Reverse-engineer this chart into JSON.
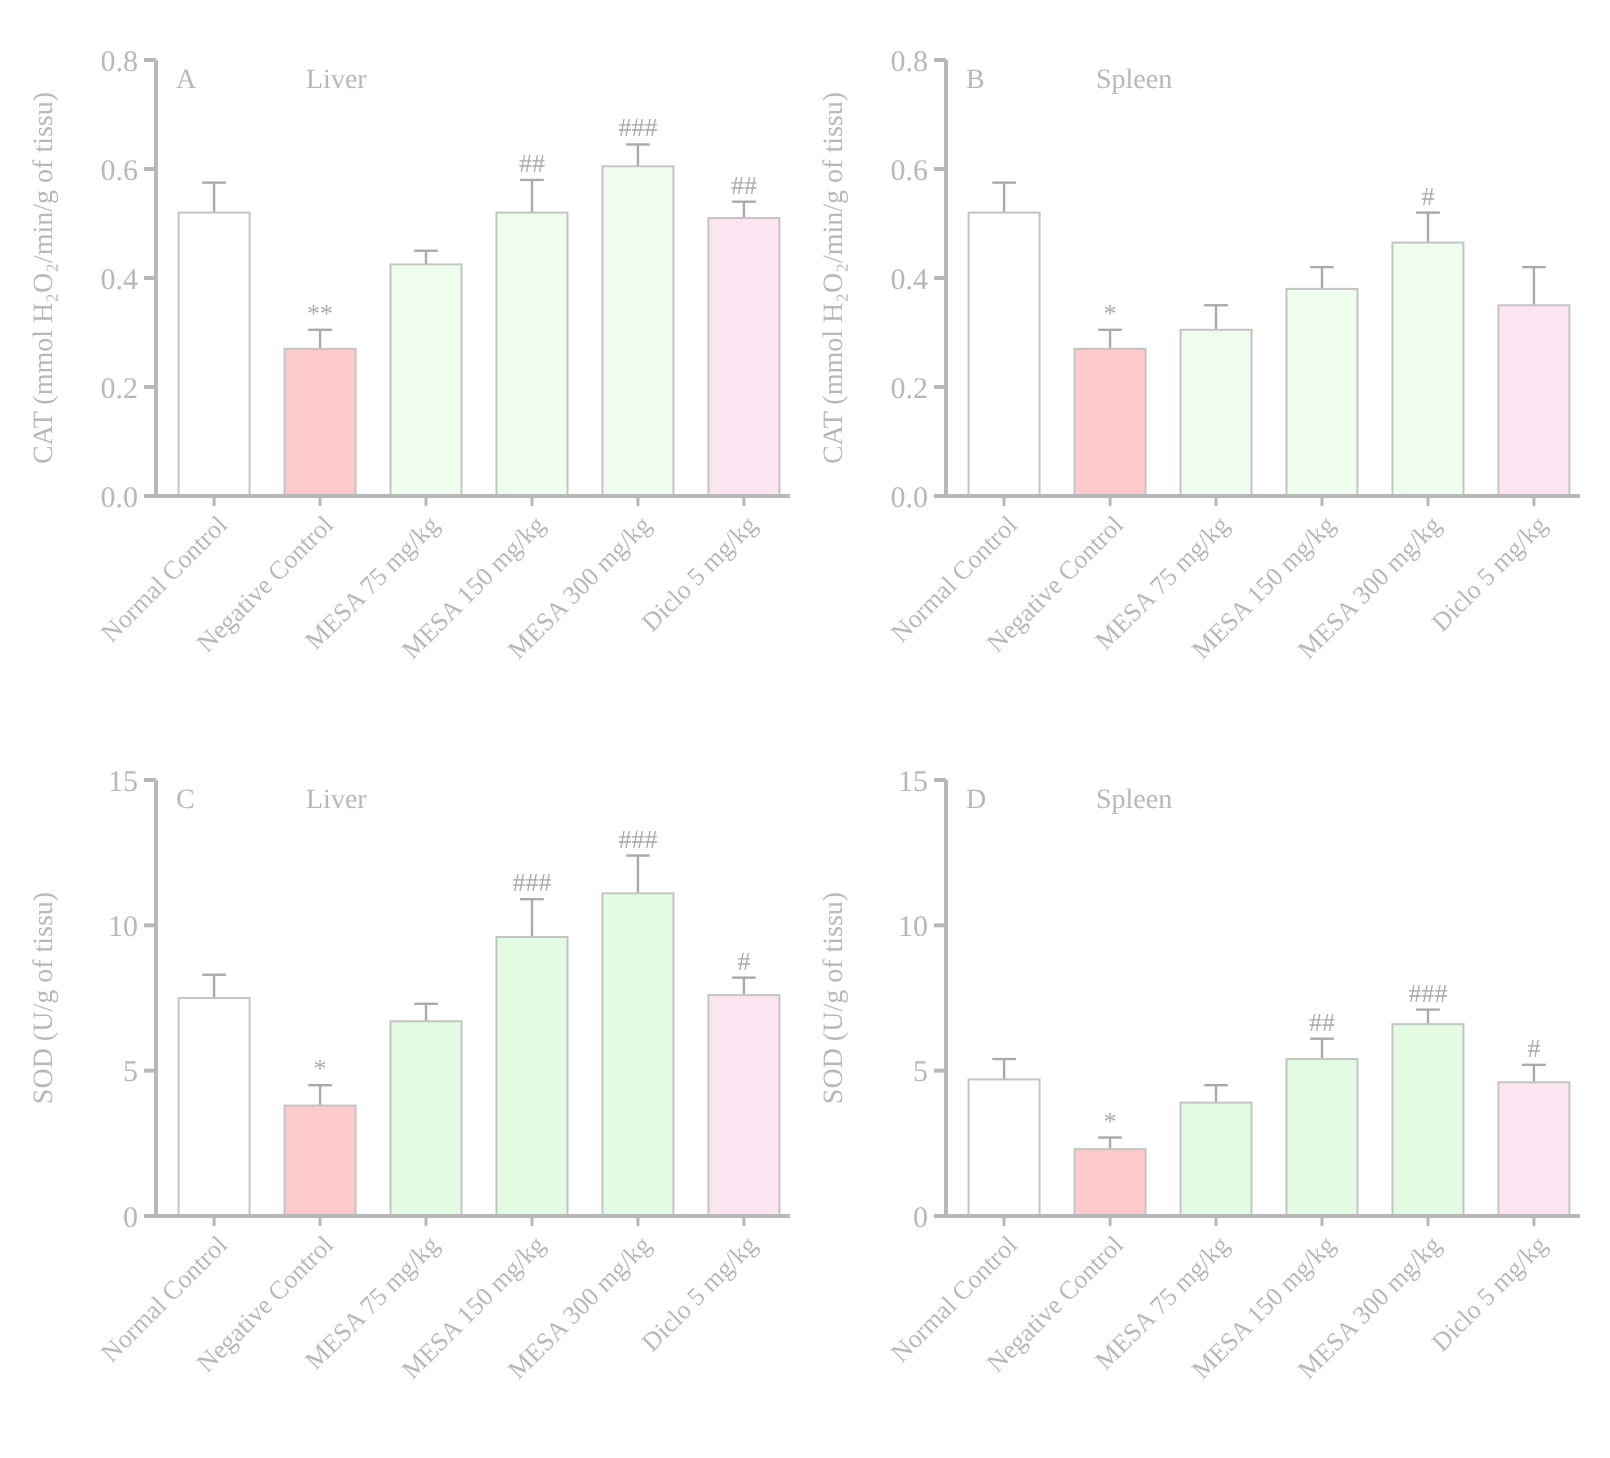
{
  "chart_data": [
    {
      "type": "bar",
      "title": "Liver",
      "ylabel": "CAT (mmol H₂O₂/min/g of tissu)",
      "categories": [
        "Normal Control",
        "Negative Control",
        "MESA 75 mg/kg",
        "MESA 150 mg/kg",
        "MESA 300 mg/kg",
        "Diclo 5 mg/kg"
      ],
      "values": [
        0.52,
        0.27,
        0.425,
        0.52,
        0.605,
        0.51
      ],
      "errors": [
        0.055,
        0.035,
        0.025,
        0.06,
        0.04,
        0.03
      ],
      "colors": [
        "#ffffff",
        "#fccaca",
        "#effdef",
        "#effdef",
        "#effdef",
        "#fce4f0"
      ],
      "ylim": [
        0,
        0.8
      ],
      "yticks": [
        {
          "value": 0,
          "label": "0.0"
        },
        0.2,
        0.4,
        0.6,
        0.8
      ],
      "grid": false,
      "annotations": [
        "A",
        {
          "text": "**",
          "x": "Negative Control",
          "y": 0.305
        },
        {
          "text": "##",
          "x": "MESA 150 mg/kg",
          "y": 0.58
        },
        {
          "text": "###",
          "x": "MESA 300 mg/kg",
          "y": 0.645
        },
        {
          "text": "##",
          "x": "Diclo 5 mg/kg",
          "y": 0.54
        }
      ]
    },
    {
      "type": "bar",
      "title": "Spleen",
      "ylabel": "CAT (mmol H₂O₂/min/g of tissu)",
      "categories": [
        "Normal Control",
        "Negative Control",
        "MESA 75 mg/kg",
        "MESA 150 mg/kg",
        "MESA 300 mg/kg",
        "Diclo 5 mg/kg"
      ],
      "values": [
        0.52,
        0.27,
        0.305,
        0.38,
        0.465,
        0.35
      ],
      "errors": [
        0.055,
        0.035,
        0.045,
        0.04,
        0.055,
        0.07
      ],
      "colors": [
        "#ffffff",
        "#fccaca",
        "#effdef",
        "#effdef",
        "#effdef",
        "#fce4f0"
      ],
      "ylim": [
        0,
        0.8
      ],
      "yticks": [
        {
          "value": 0,
          "label": "0.0"
        },
        0.2,
        0.4,
        0.6,
        0.8
      ],
      "grid": false,
      "annotations": [
        "B",
        {
          "text": "*",
          "x": "Negative Control",
          "y": 0.305
        },
        {
          "text": "#",
          "x": "MESA 300 mg/kg",
          "y": 0.52
        }
      ]
    },
    {
      "type": "bar",
      "title": "Liver",
      "ylabel": "SOD (U/g of tissu)",
      "categories": [
        "Normal Control",
        "Negative Control",
        "MESA 75 mg/kg",
        "MESA 150 mg/kg",
        "MESA 300 mg/kg",
        "Diclo 5 mg/kg"
      ],
      "values": [
        7.5,
        3.8,
        6.7,
        9.6,
        11.1,
        7.6
      ],
      "errors": [
        0.8,
        0.7,
        0.6,
        1.3,
        1.3,
        0.6
      ],
      "colors": [
        "#ffffff",
        "#fccaca",
        "#e3fbe3",
        "#e3fbe3",
        "#e3fbe3",
        "#fce4f0"
      ],
      "ylim": [
        0,
        15
      ],
      "yticks": [
        0,
        5,
        10,
        15
      ],
      "grid": false,
      "annotations": [
        "C",
        {
          "text": "*",
          "x": "Negative Control",
          "y": 4.5
        },
        {
          "text": "###",
          "x": "MESA 150 mg/kg",
          "y": 10.9
        },
        {
          "text": "###",
          "x": "MESA 300 mg/kg",
          "y": 12.4
        },
        {
          "text": "#",
          "x": "Diclo 5 mg/kg",
          "y": 8.2
        }
      ]
    },
    {
      "type": "bar",
      "title": "Spleen",
      "ylabel": "SOD (U/g of tissu)",
      "categories": [
        "Normal Control",
        "Negative Control",
        "MESA 75 mg/kg",
        "MESA 150 mg/kg",
        "MESA 300 mg/kg",
        "Diclo 5 mg/kg"
      ],
      "values": [
        4.7,
        2.3,
        3.9,
        5.4,
        6.6,
        4.6
      ],
      "errors": [
        0.7,
        0.4,
        0.6,
        0.7,
        0.5,
        0.6
      ],
      "colors": [
        "#ffffff",
        "#fccaca",
        "#e3fbe3",
        "#e3fbe3",
        "#e3fbe3",
        "#fce4f0"
      ],
      "ylim": [
        0,
        15
      ],
      "yticks": [
        0,
        5,
        10,
        15
      ],
      "grid": false,
      "annotations": [
        "D",
        {
          "text": "*",
          "x": "Negative Control",
          "y": 2.7
        },
        {
          "text": "##",
          "x": "MESA 150 mg/kg",
          "y": 6.1
        },
        {
          "text": "###",
          "x": "MESA 300 mg/kg",
          "y": 7.1
        },
        {
          "text": "#",
          "x": "Diclo 5 mg/kg",
          "y": 5.2
        }
      ]
    }
  ]
}
